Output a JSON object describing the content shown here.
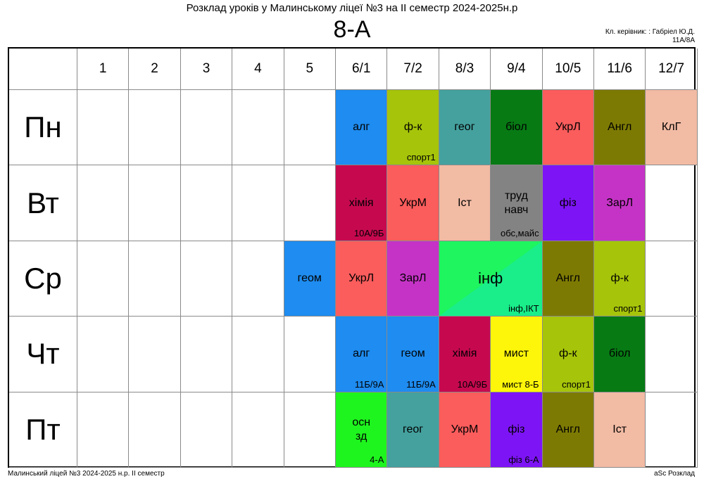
{
  "header": {
    "title": "Розклад уроків у Малинському ліцеї №3 на ІІ семестр 2024-2025н.р",
    "class_name": "8-А",
    "teacher_line1": "Кл. керівник: : Габріел Ю.Д.",
    "teacher_line2": "11А/8А"
  },
  "periods": [
    "1",
    "2",
    "3",
    "4",
    "5",
    "6/1",
    "7/2",
    "8/3",
    "9/4",
    "10/5",
    "11/6",
    "12/7"
  ],
  "days": [
    "Пн",
    "Вт",
    "Ср",
    "Чт",
    "Пт"
  ],
  "lessons": [
    {
      "day": 0,
      "period": 5,
      "subject": "алг",
      "room": "",
      "color": "#1e8cf0"
    },
    {
      "day": 0,
      "period": 6,
      "subject": "ф-к",
      "room": "спорт1",
      "color": "#a6c40a"
    },
    {
      "day": 0,
      "period": 7,
      "subject": "геог",
      "room": "",
      "color": "#44a19e"
    },
    {
      "day": 0,
      "period": 8,
      "subject": "біол",
      "room": "",
      "color": "#077a14"
    },
    {
      "day": 0,
      "period": 9,
      "subject": "УкрЛ",
      "room": "",
      "color": "#fb5c5c"
    },
    {
      "day": 0,
      "period": 10,
      "subject": "Англ",
      "room": "",
      "color": "#7d7a04"
    },
    {
      "day": 0,
      "period": 11,
      "subject": "КлГ",
      "room": "",
      "color": "#f2bba4"
    },
    {
      "day": 1,
      "period": 5,
      "subject": "хімія",
      "room": "10А/9Б",
      "color": "#c6094f"
    },
    {
      "day": 1,
      "period": 6,
      "subject": "УкрМ",
      "room": "",
      "color": "#fb5c5c"
    },
    {
      "day": 1,
      "period": 7,
      "subject": "Іст",
      "room": "",
      "color": "#f2bba4"
    },
    {
      "day": 1,
      "period": 8,
      "subject": "труд навч",
      "room": "обс,майс",
      "color": "#838383"
    },
    {
      "day": 1,
      "period": 9,
      "subject": "фіз",
      "room": "",
      "color": "#7d14f5"
    },
    {
      "day": 1,
      "period": 10,
      "subject": "ЗарЛ",
      "room": "",
      "color": "#c533c6"
    },
    {
      "day": 2,
      "period": 4,
      "subject": "геом",
      "room": "",
      "color": "#1e8cf0"
    },
    {
      "day": 2,
      "period": 5,
      "subject": "УкрЛ",
      "room": "",
      "color": "#fb5c5c"
    },
    {
      "day": 2,
      "period": 6,
      "subject": "ЗарЛ",
      "room": "",
      "color": "#c533c6"
    },
    {
      "day": 2,
      "period": 7,
      "span": 2,
      "subject": "інф",
      "room": "інф,ІКТ",
      "color": "#1ef55f",
      "color2": "#19ee8a"
    },
    {
      "day": 2,
      "period": 9,
      "subject": "Англ",
      "room": "",
      "color": "#7d7a04"
    },
    {
      "day": 2,
      "period": 10,
      "subject": "ф-к",
      "room": "спорт1",
      "color": "#a6c40a"
    },
    {
      "day": 3,
      "period": 5,
      "subject": "алг",
      "room": "11Б/9А",
      "color": "#1e8cf0"
    },
    {
      "day": 3,
      "period": 6,
      "subject": "геом",
      "room": "11Б/9А",
      "color": "#1e8cf0"
    },
    {
      "day": 3,
      "period": 7,
      "subject": "хімія",
      "room": "10А/9Б",
      "color": "#c6094f"
    },
    {
      "day": 3,
      "period": 8,
      "subject": "мист",
      "room": "мист 8-Б",
      "color": "#fdf50a"
    },
    {
      "day": 3,
      "period": 9,
      "subject": "ф-к",
      "room": "спорт1",
      "color": "#a6c40a"
    },
    {
      "day": 3,
      "period": 10,
      "subject": "біол",
      "room": "",
      "color": "#077a14"
    },
    {
      "day": 4,
      "period": 5,
      "subject": "осн зд",
      "room": "4-А",
      "color": "#1ef51e"
    },
    {
      "day": 4,
      "period": 6,
      "subject": "геог",
      "room": "",
      "color": "#44a19e"
    },
    {
      "day": 4,
      "period": 7,
      "subject": "УкрМ",
      "room": "",
      "color": "#fb5c5c"
    },
    {
      "day": 4,
      "period": 8,
      "subject": "фіз",
      "room": "фіз 6-А",
      "color": "#7d14f5"
    },
    {
      "day": 4,
      "period": 9,
      "subject": "Англ",
      "room": "",
      "color": "#7d7a04"
    },
    {
      "day": 4,
      "period": 10,
      "subject": "Іст",
      "room": "",
      "color": "#f2bba4"
    }
  ],
  "footer": {
    "left": "Малинський ліцей №3  2024-2025 н.р. ІІ семестр",
    "right": "aSc Розклад"
  }
}
